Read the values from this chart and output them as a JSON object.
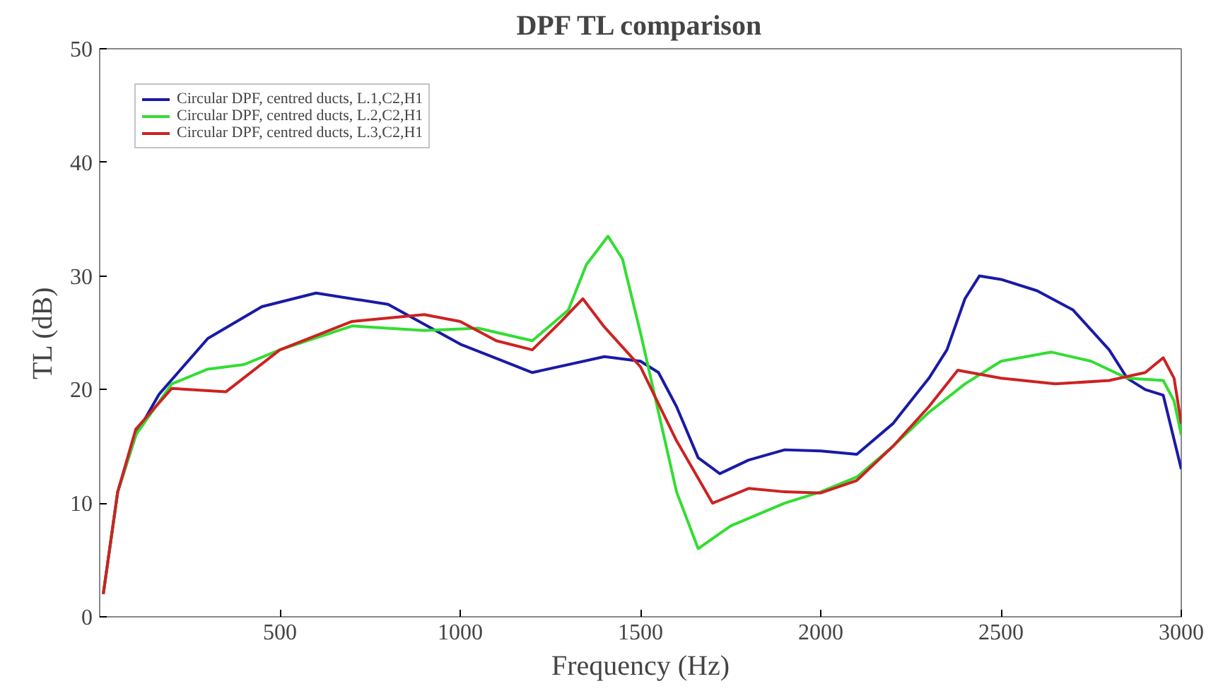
{
  "chart_data": {
    "type": "line",
    "title": "DPF TL comparison",
    "xlabel": "Frequency (Hz)",
    "ylabel": "TL (dB)",
    "xlim": [
      0,
      3000
    ],
    "ylim": [
      0,
      50
    ],
    "xticks": [
      500,
      1000,
      1500,
      2000,
      2500,
      3000
    ],
    "yticks": [
      0,
      10,
      20,
      30,
      40,
      50
    ],
    "grid": false,
    "legend": "top left",
    "line_style": "solid",
    "series": [
      {
        "name": "Circular DPF, centred ducts, L.1,C2,H1",
        "color": "#1a1aa6",
        "x": [
          10,
          50,
          100,
          165,
          300,
          450,
          600,
          800,
          1000,
          1200,
          1400,
          1500,
          1550,
          1600,
          1660,
          1720,
          1800,
          1900,
          2000,
          2100,
          2200,
          2300,
          2350,
          2400,
          2440,
          2500,
          2600,
          2700,
          2800,
          2850,
          2900,
          2950,
          3000
        ],
        "values": [
          2,
          11,
          16,
          19.6,
          24.5,
          27.3,
          28.5,
          27.5,
          24,
          21.5,
          22.9,
          22.5,
          21.5,
          18.5,
          14,
          12.6,
          13.8,
          14.7,
          14.6,
          14.3,
          17,
          21,
          23.5,
          28,
          30,
          29.7,
          28.7,
          27,
          23.5,
          21,
          20,
          19.5,
          13
        ]
      },
      {
        "name": "Circular DPF, centred ducts, L.2,C2,H1",
        "color": "#33dd33",
        "x": [
          10,
          50,
          100,
          200,
          300,
          400,
          500,
          700,
          900,
          1050,
          1200,
          1300,
          1350,
          1410,
          1450,
          1500,
          1550,
          1600,
          1660,
          1750,
          1900,
          2000,
          2100,
          2200,
          2300,
          2400,
          2500,
          2640,
          2750,
          2850,
          2950,
          2980,
          3000
        ],
        "values": [
          2,
          11,
          16,
          20.5,
          21.8,
          22.2,
          23.5,
          25.6,
          25.2,
          25.4,
          24.3,
          27,
          31,
          33.5,
          31.5,
          25,
          18,
          11,
          6,
          8,
          10,
          11,
          12.3,
          15,
          18,
          20.5,
          22.5,
          23.3,
          22.5,
          21,
          20.8,
          19,
          16
        ]
      },
      {
        "name": "Circular DPF, centred ducts, L.3,C2,H1",
        "color": "#cc2222",
        "x": [
          10,
          50,
          100,
          200,
          350,
          500,
          700,
          900,
          1000,
          1100,
          1200,
          1280,
          1340,
          1400,
          1500,
          1600,
          1700,
          1800,
          1900,
          2000,
          2100,
          2200,
          2300,
          2380,
          2500,
          2650,
          2800,
          2900,
          2950,
          2980,
          3000
        ],
        "values": [
          2,
          11,
          16.5,
          20.1,
          19.8,
          23.5,
          26,
          26.6,
          26,
          24.3,
          23.5,
          26,
          28,
          25.5,
          22,
          15.5,
          10,
          11.3,
          11,
          10.9,
          12,
          15,
          18.5,
          21.7,
          21,
          20.5,
          20.8,
          21.5,
          22.8,
          21,
          17
        ]
      }
    ]
  }
}
